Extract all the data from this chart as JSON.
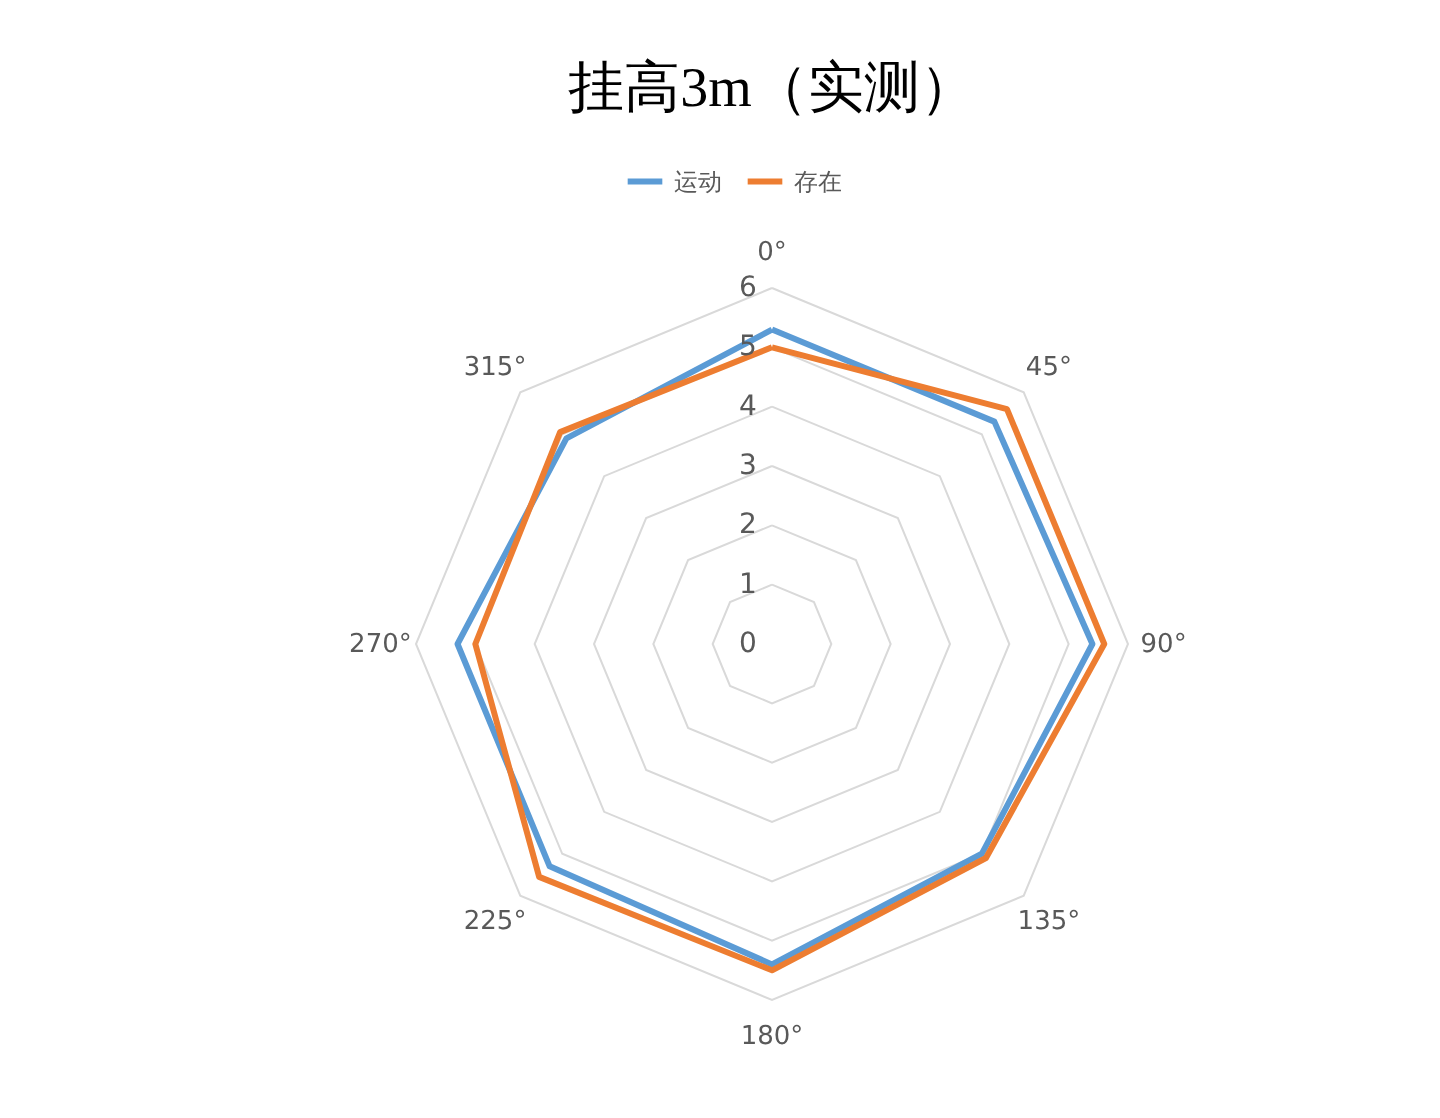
{
  "chart_data": {
    "type": "radar",
    "title": "挂高3m（实测）",
    "categories": [
      "0°",
      "45°",
      "90°",
      "135°",
      "180°",
      "225°",
      "270°",
      "315°"
    ],
    "series": [
      {
        "name": "运动",
        "color": "#5b9bd5",
        "values": [
          5.3,
          5.3,
          5.4,
          5.0,
          5.4,
          5.3,
          5.3,
          4.9
        ]
      },
      {
        "name": "存在",
        "color": "#ed7d31",
        "values": [
          5.0,
          5.6,
          5.6,
          5.1,
          5.5,
          5.55,
          5.0,
          5.05
        ]
      }
    ],
    "ylim": [
      0,
      6
    ],
    "yticks": [
      0,
      1,
      2,
      3,
      4,
      5,
      6
    ],
    "grid": true,
    "legend": "top"
  }
}
